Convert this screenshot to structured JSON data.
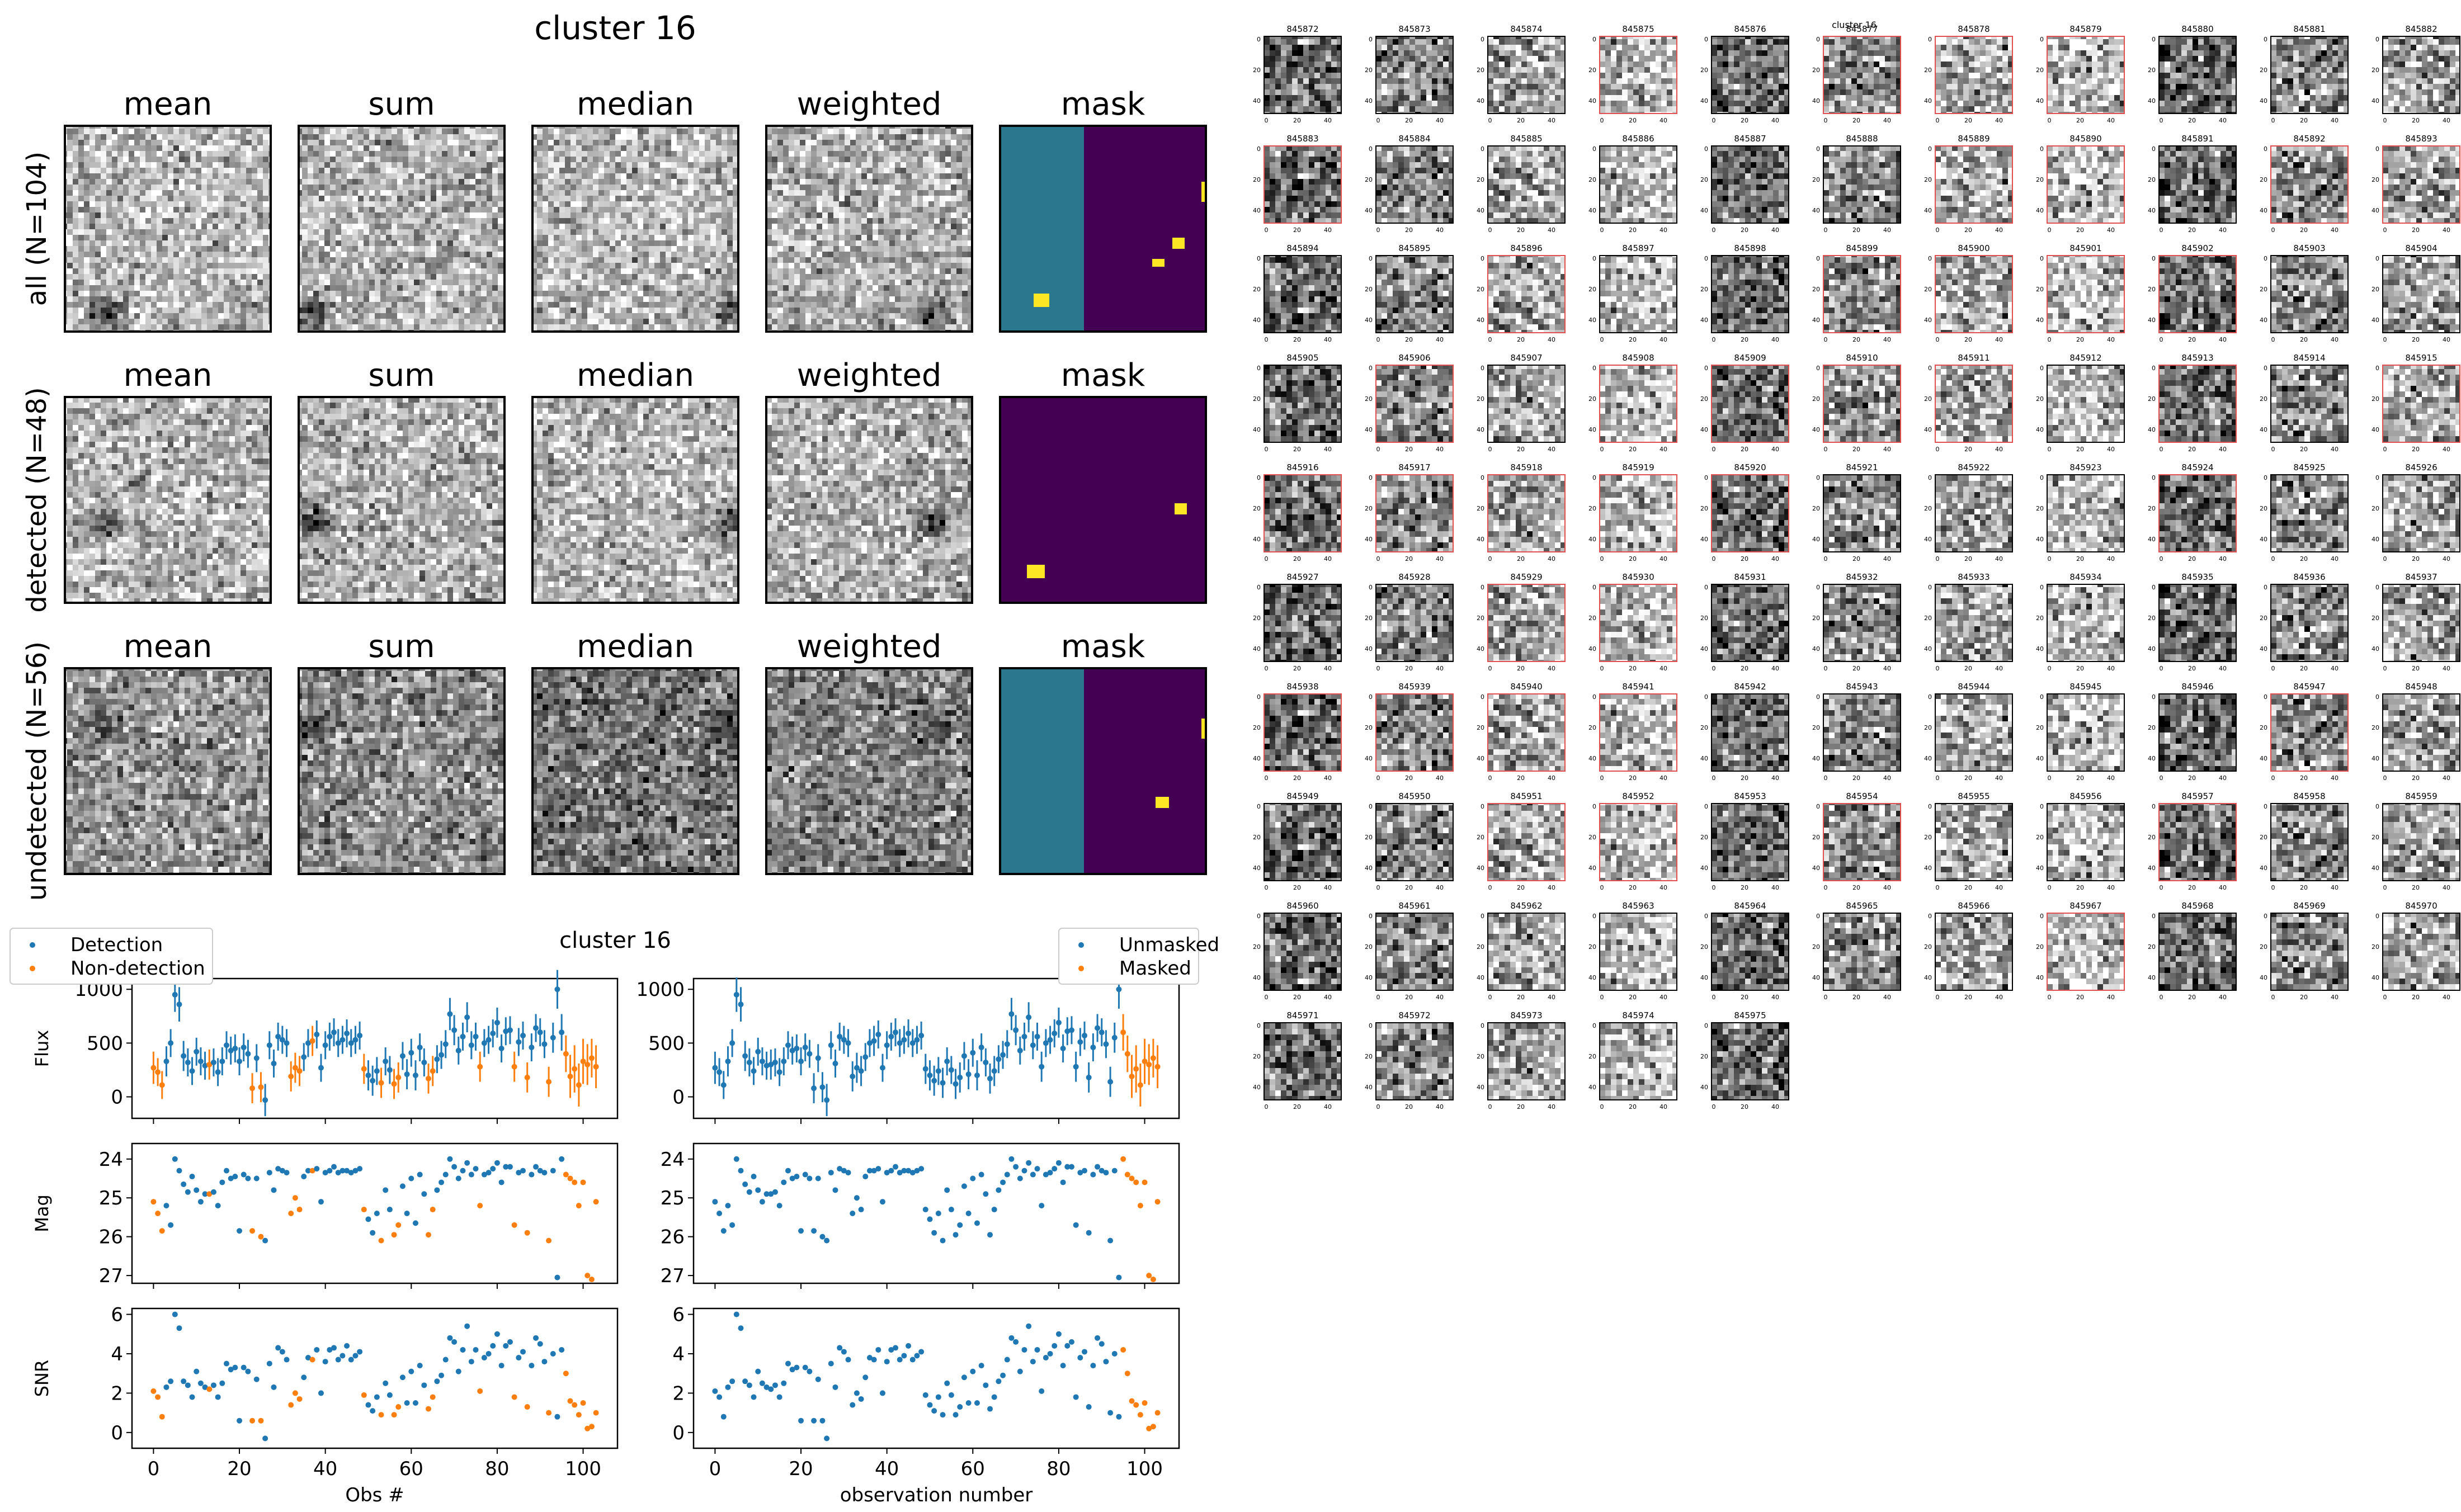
{
  "page": {
    "stamp_title": "cluster 16",
    "grid_title": "cluster 16",
    "lc_title": "cluster 16"
  },
  "stamp_panel": {
    "column_titles": [
      "mean",
      "sum",
      "median",
      "weighted",
      "mask"
    ],
    "row_labels": [
      "all (N=104)",
      "detected (N=48)",
      "undetected (N=56)"
    ],
    "colors": {
      "mask_bg": "#440154",
      "mask_teal": "#2a788e",
      "mask_yellow": "#fde725"
    }
  },
  "cutout_grid": {
    "ids": [
      "845872",
      "845873",
      "845874",
      "845875",
      "845876",
      "845877",
      "845878",
      "845879",
      "845880",
      "845881",
      "845882",
      "845883",
      "845884",
      "845885",
      "845886",
      "845887",
      "845888",
      "845889",
      "845890",
      "845891",
      "845892",
      "845893",
      "845894",
      "845895",
      "845896",
      "845897",
      "845898",
      "845899",
      "845900",
      "845901",
      "845902",
      "845903",
      "845904",
      "845905",
      "845906",
      "845907",
      "845908",
      "845909",
      "845910",
      "845911",
      "845912",
      "845913",
      "845914",
      "845915",
      "845916",
      "845917",
      "845918",
      "845919",
      "845920",
      "845921",
      "845922",
      "845923",
      "845924",
      "845925",
      "845926",
      "845927",
      "845928",
      "845929",
      "845930",
      "845931",
      "845932",
      "845933",
      "845934",
      "845935",
      "845936",
      "845937",
      "845938",
      "845939",
      "845940",
      "845941",
      "845942",
      "845943",
      "845944",
      "845945",
      "845946",
      "845947",
      "845948",
      "845949",
      "845950",
      "845951",
      "845952",
      "845953",
      "845954",
      "845955",
      "845956",
      "845957",
      "845958",
      "845959",
      "845960",
      "845961",
      "845962",
      "845963",
      "845964",
      "845965",
      "845966",
      "845967",
      "845968",
      "845969",
      "845970",
      "845971",
      "845972",
      "845973",
      "845974",
      "845975"
    ],
    "red_border_ids": [
      "845875",
      "845877",
      "845878",
      "845879",
      "845883",
      "845889",
      "845890",
      "845892",
      "845893",
      "845896",
      "845899",
      "845900",
      "845901",
      "845902",
      "845906",
      "845908",
      "845909",
      "845910",
      "845911",
      "845913",
      "845915",
      "845916",
      "845917",
      "845918",
      "845919",
      "845920",
      "845924",
      "845929",
      "845930",
      "845938",
      "845939",
      "845940",
      "845941",
      "845947",
      "845951",
      "845952",
      "845954",
      "845957",
      "845967"
    ],
    "x_ticks": [
      "0",
      "20",
      "40"
    ],
    "y_ticks": [
      "0",
      "20",
      "40"
    ],
    "colors": {
      "red_border": "#e05050"
    }
  },
  "chart_data": [
    {
      "type": "scatter",
      "title": "",
      "xlabel": "Obs #",
      "panels": [
        {
          "ylabel": "Flux",
          "ylim": [
            -200,
            1100
          ],
          "yticks": [
            0,
            500,
            1000
          ]
        },
        {
          "ylabel": "Mag",
          "ylim": [
            27.2,
            23.6
          ],
          "yticks": [
            24,
            25,
            26,
            27
          ],
          "inverted": true
        },
        {
          "ylabel": "SNR",
          "ylim": [
            -0.8,
            6.3
          ],
          "yticks": [
            0,
            2,
            4,
            6
          ]
        }
      ],
      "xlim": [
        -5,
        108
      ],
      "xticks": [
        0,
        20,
        40,
        60,
        80,
        100
      ],
      "series": [
        {
          "name": "Detection",
          "color": "#1f77b4",
          "indices": [
            3,
            4,
            5,
            6,
            7,
            8,
            9,
            10,
            11,
            12,
            14,
            15,
            16,
            17,
            18,
            19,
            20,
            21,
            22,
            24,
            26,
            27,
            28,
            29,
            30,
            31,
            35,
            36,
            38,
            39,
            40,
            41,
            42,
            43,
            44,
            45,
            46,
            47,
            48,
            50,
            51,
            52,
            54,
            55,
            58,
            59,
            60,
            61,
            62,
            63,
            66,
            67,
            68,
            69,
            70,
            71,
            72,
            73,
            74,
            75,
            77,
            78,
            79,
            80,
            81,
            82,
            83,
            85,
            86,
            88,
            89,
            90,
            91,
            93,
            94,
            95
          ]
        },
        {
          "name": "Non-detection",
          "color": "#ff7f0e",
          "indices": [
            0,
            1,
            2,
            13,
            23,
            25,
            32,
            33,
            34,
            37,
            49,
            53,
            56,
            57,
            64,
            65,
            76,
            84,
            87,
            92,
            96,
            97,
            98,
            99,
            100,
            101,
            102,
            103
          ]
        }
      ],
      "legend_position": "upper-left"
    },
    {
      "type": "scatter",
      "title": "",
      "xlabel": "observation number",
      "panels": [
        {
          "ylabel": "",
          "ylim": [
            -200,
            1100
          ],
          "yticks": [
            0,
            500,
            1000
          ]
        },
        {
          "ylabel": "",
          "ylim": [
            27.2,
            23.6
          ],
          "yticks": [
            24,
            25,
            26,
            27
          ],
          "inverted": true
        },
        {
          "ylabel": "",
          "ylim": [
            -0.8,
            6.3
          ],
          "yticks": [
            0,
            2,
            4,
            6
          ]
        }
      ],
      "xlim": [
        -5,
        108
      ],
      "xticks": [
        0,
        20,
        40,
        60,
        80,
        100
      ],
      "series": [
        {
          "name": "Unmasked",
          "color": "#1f77b4",
          "indices_rule": "0-94"
        },
        {
          "name": "Masked",
          "color": "#ff7f0e",
          "indices_rule": "95-103"
        }
      ],
      "legend_position": "upper-right"
    }
  ],
  "lightcurve": {
    "x": [
      0,
      1,
      2,
      3,
      4,
      5,
      6,
      7,
      8,
      9,
      10,
      11,
      12,
      13,
      14,
      15,
      16,
      17,
      18,
      19,
      20,
      21,
      22,
      23,
      24,
      25,
      26,
      27,
      28,
      29,
      30,
      31,
      32,
      33,
      34,
      35,
      36,
      37,
      38,
      39,
      40,
      41,
      42,
      43,
      44,
      45,
      46,
      47,
      48,
      49,
      50,
      51,
      52,
      53,
      54,
      55,
      56,
      57,
      58,
      59,
      60,
      61,
      62,
      63,
      64,
      65,
      66,
      67,
      68,
      69,
      70,
      71,
      72,
      73,
      74,
      75,
      76,
      77,
      78,
      79,
      80,
      81,
      82,
      83,
      84,
      85,
      86,
      87,
      88,
      89,
      90,
      91,
      92,
      93,
      94,
      95,
      96,
      97,
      98,
      99,
      100,
      101,
      102,
      103
    ],
    "flux": [
      270,
      230,
      110,
      330,
      500,
      950,
      860,
      380,
      320,
      240,
      420,
      330,
      290,
      300,
      320,
      230,
      330,
      480,
      430,
      450,
      330,
      460,
      400,
      80,
      360,
      90,
      -30,
      480,
      310,
      560,
      530,
      500,
      190,
      270,
      240,
      370,
      500,
      520,
      580,
      270,
      480,
      560,
      600,
      500,
      530,
      590,
      500,
      530,
      570,
      260,
      200,
      150,
      240,
      130,
      330,
      250,
      120,
      180,
      380,
      210,
      410,
      200,
      460,
      320,
      170,
      240,
      350,
      390,
      490,
      770,
      620,
      430,
      560,
      740,
      480,
      560,
      280,
      500,
      530,
      590,
      690,
      450,
      610,
      620,
      280,
      510,
      570,
      180,
      460,
      640,
      600,
      490,
      140,
      550,
      1000,
      600,
      400,
      190,
      260,
      110,
      330,
      300,
      360,
      280
    ],
    "flux_err": [
      150,
      130,
      130,
      140,
      130,
      160,
      160,
      140,
      130,
      130,
      130,
      130,
      130,
      140,
      130,
      130,
      130,
      130,
      130,
      130,
      130,
      130,
      130,
      140,
      130,
      140,
      150,
      130,
      130,
      130,
      130,
      130,
      140,
      140,
      140,
      130,
      130,
      140,
      130,
      130,
      130,
      130,
      130,
      130,
      130,
      130,
      130,
      130,
      130,
      140,
      140,
      140,
      130,
      140,
      130,
      130,
      140,
      140,
      130,
      140,
      130,
      140,
      130,
      130,
      140,
      140,
      130,
      130,
      130,
      150,
      140,
      130,
      130,
      140,
      130,
      130,
      140,
      130,
      130,
      130,
      140,
      130,
      130,
      130,
      140,
      130,
      130,
      140,
      130,
      130,
      130,
      130,
      140,
      140,
      180,
      170,
      170,
      200,
      220,
      200,
      210,
      190,
      180,
      200
    ],
    "mag": [
      25.1,
      25.4,
      25.85,
      25.2,
      25.7,
      24.0,
      24.3,
      24.65,
      24.85,
      24.45,
      24.8,
      25.1,
      24.9,
      24.9,
      24.85,
      25.2,
      24.6,
      24.3,
      24.5,
      24.45,
      25.85,
      24.4,
      24.5,
      25.85,
      24.5,
      26.0,
      26.1,
      24.35,
      24.8,
      24.25,
      24.3,
      24.35,
      25.4,
      25.0,
      25.3,
      24.45,
      24.3,
      24.3,
      24.25,
      25.1,
      24.35,
      24.3,
      24.2,
      24.35,
      24.3,
      24.3,
      24.35,
      24.3,
      24.25,
      25.3,
      25.55,
      25.9,
      25.4,
      26.1,
      24.8,
      25.3,
      25.95,
      25.7,
      24.7,
      25.4,
      24.5,
      25.65,
      24.4,
      24.9,
      25.95,
      25.3,
      24.8,
      24.6,
      24.4,
      24.0,
      24.2,
      24.5,
      24.3,
      24.1,
      24.4,
      24.25,
      25.2,
      24.4,
      24.35,
      24.25,
      24.1,
      24.6,
      24.2,
      24.2,
      25.7,
      24.35,
      24.3,
      25.9,
      24.4,
      24.2,
      24.3,
      24.35,
      26.1,
      24.3,
      27.05,
      24.0,
      24.4,
      24.5,
      24.6,
      25.2,
      24.6,
      27.0,
      27.1,
      25.1
    ],
    "snr": [
      2.1,
      1.8,
      0.8,
      2.3,
      2.6,
      6.0,
      5.3,
      2.6,
      2.4,
      1.8,
      3.1,
      2.5,
      2.3,
      2.2,
      2.4,
      1.8,
      2.5,
      3.5,
      3.2,
      3.3,
      0.6,
      3.3,
      3.1,
      0.6,
      2.7,
      0.6,
      -0.3,
      3.5,
      2.3,
      4.3,
      4.1,
      3.7,
      1.4,
      2.0,
      1.7,
      2.8,
      3.8,
      3.7,
      4.2,
      2.0,
      3.6,
      4.2,
      4.3,
      3.7,
      3.9,
      4.4,
      3.7,
      3.9,
      4.1,
      1.9,
      1.4,
      1.1,
      1.8,
      0.9,
      2.5,
      1.9,
      0.9,
      1.3,
      2.8,
      1.5,
      3.1,
      1.5,
      3.4,
      2.4,
      1.2,
      1.8,
      2.6,
      2.9,
      3.7,
      4.8,
      4.6,
      3.1,
      4.2,
      5.4,
      3.6,
      4.2,
      2.1,
      3.8,
      4.0,
      4.4,
      5.0,
      3.4,
      4.4,
      4.6,
      1.8,
      3.8,
      4.1,
      1.3,
      3.4,
      4.8,
      4.5,
      3.6,
      1.0,
      4.0,
      0.8,
      4.2,
      3.0,
      1.6,
      1.4,
      0.9,
      1.5,
      0.2,
      0.3,
      1.0
    ]
  },
  "legends": {
    "left": [
      "Detection",
      "Non-detection"
    ],
    "right": [
      "Unmasked",
      "Masked"
    ]
  }
}
